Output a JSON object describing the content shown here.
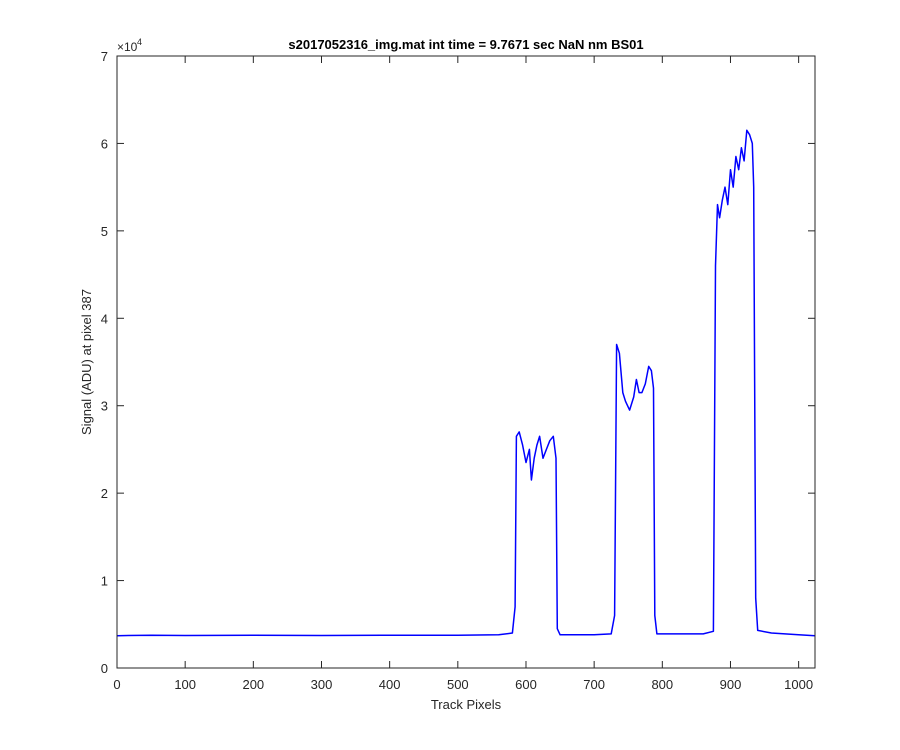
{
  "chart_data": {
    "type": "line",
    "title": "s2017052316_img.mat int time = 9.7671 sec  NaN nm BS01",
    "xlabel": "Track Pixels",
    "ylabel": "Signal (ADU) at pixel 387",
    "xlim": [
      0,
      1024
    ],
    "ylim": [
      0,
      70000
    ],
    "x_ticks": [
      0,
      100,
      200,
      300,
      400,
      500,
      600,
      700,
      800,
      900,
      1000
    ],
    "y_ticks": [
      0,
      10000,
      20000,
      30000,
      40000,
      50000,
      60000,
      70000
    ],
    "y_tick_labels": [
      "0",
      "1",
      "2",
      "3",
      "4",
      "5",
      "6",
      "7"
    ],
    "y_exponent_base": "×10",
    "y_exponent_power": "4",
    "grid": false,
    "line_color": "#0000ff",
    "series": [
      {
        "x": [
          0,
          50,
          100,
          200,
          300,
          400,
          500,
          560,
          580,
          584,
          586,
          590,
          595,
          600,
          605,
          608,
          612,
          616,
          620,
          625,
          630,
          635,
          640,
          644,
          646,
          650,
          700,
          725,
          730,
          733,
          737,
          742,
          746,
          752,
          758,
          762,
          766,
          770,
          775,
          780,
          784,
          787,
          789,
          792,
          820,
          860,
          875,
          878,
          881,
          884,
          888,
          892,
          896,
          900,
          904,
          908,
          912,
          916,
          920,
          924,
          928,
          932,
          934,
          937,
          940,
          960,
          1000,
          1024
        ],
        "y": [
          3700,
          3750,
          3720,
          3750,
          3720,
          3750,
          3750,
          3800,
          4000,
          7000,
          26500,
          27000,
          25500,
          23500,
          25000,
          21500,
          24000,
          25500,
          26500,
          24000,
          25000,
          26000,
          26500,
          24000,
          4500,
          3800,
          3800,
          3900,
          6000,
          37000,
          36000,
          31500,
          30500,
          29500,
          31000,
          33000,
          31500,
          31500,
          32500,
          34500,
          34000,
          32000,
          6000,
          3900,
          3900,
          3900,
          4200,
          46000,
          53000,
          51500,
          53500,
          55000,
          53000,
          57000,
          55000,
          58500,
          57000,
          59500,
          58000,
          61500,
          61000,
          60000,
          55000,
          8000,
          4300,
          4000,
          3800,
          3700
        ]
      }
    ]
  }
}
